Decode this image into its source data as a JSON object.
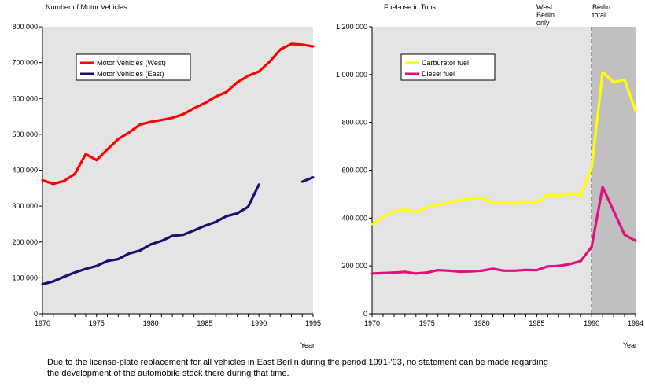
{
  "chart_data": [
    {
      "type": "line",
      "title": "Number of Motor Vehicles",
      "xlabel": "Year",
      "ylabel": "",
      "xlim": [
        1970,
        1995
      ],
      "ylim": [
        0,
        800000
      ],
      "x_ticks": [
        "1970",
        "1975",
        "1980",
        "1985",
        "1990",
        "1995"
      ],
      "y_ticks": [
        "0",
        "100 000",
        "200 000",
        "300 000",
        "400 000",
        "500 000",
        "600 000",
        "700 000",
        "800 000"
      ],
      "legend_position": "top-left",
      "grid": false,
      "background": "#e4e4e4",
      "x": [
        1970,
        1971,
        1972,
        1973,
        1974,
        1975,
        1976,
        1977,
        1978,
        1979,
        1980,
        1981,
        1982,
        1983,
        1984,
        1985,
        1986,
        1987,
        1988,
        1989,
        1990,
        1991,
        1992,
        1993,
        1994,
        1995
      ],
      "series": [
        {
          "name": "Motor Vehicles (West)",
          "color": "#ff0000",
          "values": [
            372000,
            362000,
            370000,
            390000,
            445000,
            428000,
            458000,
            487000,
            505000,
            527000,
            535000,
            540000,
            546000,
            556000,
            573000,
            587000,
            605000,
            618000,
            645000,
            663000,
            675000,
            703000,
            737000,
            752000,
            750000,
            745000
          ]
        },
        {
          "name": "Motor Vehicles (East)",
          "color": "#1a1070",
          "values": [
            82000,
            90000,
            103000,
            115000,
            125000,
            133000,
            147000,
            152000,
            168000,
            176000,
            193000,
            203000,
            217000,
            220000,
            232000,
            245000,
            256000,
            272000,
            280000,
            298000,
            360000,
            null,
            null,
            null,
            368000,
            380000
          ]
        }
      ]
    },
    {
      "type": "line",
      "title": "Fuel-use in Tons",
      "xlabel": "Year",
      "ylabel": "",
      "xlim": [
        1970,
        1994
      ],
      "ylim": [
        0,
        1200000
      ],
      "x_ticks": [
        "1970",
        "1975",
        "1980",
        "1985",
        "1990",
        "1994"
      ],
      "y_ticks": [
        "0",
        "200 000",
        "400 000",
        "600 000",
        "800 000",
        "1 000 000",
        "1 200 000"
      ],
      "legend_position": "top-left",
      "grid": false,
      "background": "#e4e4e4",
      "regions": [
        {
          "label": "West Berlin only",
          "from": 1970,
          "to": 1990,
          "color": "#e4e4e4"
        },
        {
          "label": "Berlin total",
          "from": 1990,
          "to": 1994,
          "color": "#c0c0c0"
        }
      ],
      "x": [
        1970,
        1971,
        1972,
        1973,
        1974,
        1975,
        1976,
        1977,
        1978,
        1979,
        1980,
        1981,
        1982,
        1983,
        1984,
        1985,
        1986,
        1987,
        1988,
        1989,
        1990,
        1991,
        1992,
        1993,
        1994
      ],
      "series": [
        {
          "name": "Carburetor fuel",
          "color": "#ffff00",
          "values": [
            375000,
            405000,
            428000,
            435000,
            425000,
            445000,
            455000,
            465000,
            475000,
            482000,
            485000,
            463000,
            462000,
            462000,
            470000,
            465000,
            497000,
            492000,
            503000,
            495000,
            610000,
            1010000,
            968000,
            978000,
            850000
          ]
        },
        {
          "name": "Diesel fuel",
          "color": "#e0107f",
          "values": [
            168000,
            170000,
            172000,
            175000,
            168000,
            172000,
            182000,
            180000,
            176000,
            177000,
            180000,
            188000,
            180000,
            180000,
            183000,
            182000,
            198000,
            200000,
            207000,
            220000,
            280000,
            530000,
            430000,
            330000,
            305000
          ]
        }
      ]
    }
  ],
  "footnote": "Due to the license-plate replacement for all vehicles in East Berlin during the period 1991-'93, no statement can be made regarding the development of the automobile stock there during that time."
}
